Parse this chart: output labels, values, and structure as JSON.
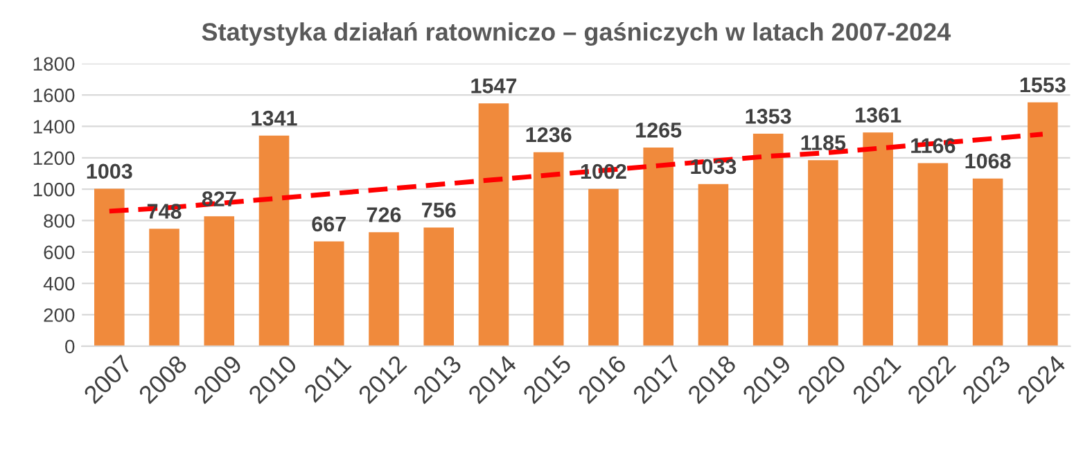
{
  "chart_data": {
    "type": "bar",
    "title": "Statystyka działań ratowniczo – gaśniczych w latach 2007-2024",
    "categories": [
      "2007",
      "2008",
      "2009",
      "2010",
      "2011",
      "2012",
      "2013",
      "2014",
      "2015",
      "2016",
      "2017",
      "2018",
      "2019",
      "2020",
      "2021",
      "2022",
      "2023",
      "2024"
    ],
    "series": [
      {
        "color": "#f08a3c",
        "values": [
          1003,
          748,
          827,
          1341,
          667,
          726,
          756,
          1547,
          1236,
          1002,
          1265,
          1033,
          1353,
          1185,
          1361,
          1166,
          1068,
          1553
        ],
        "data_labels": true
      },
      {
        "type": "line",
        "color": "#ff0000",
        "line_style": "dashed",
        "marker": "none",
        "values": [
          860,
          880,
          910,
          940,
          970,
          1000,
          1030,
          1060,
          1090,
          1120,
          1150,
          1180,
          1210,
          1230,
          1260,
          1290,
          1320,
          1350
        ]
      }
    ],
    "ylim": [
      0,
      1800
    ],
    "yticks": [
      0,
      200,
      400,
      600,
      800,
      1000,
      1200,
      1400,
      1600,
      1800
    ],
    "grid": "y",
    "legend": false
  }
}
